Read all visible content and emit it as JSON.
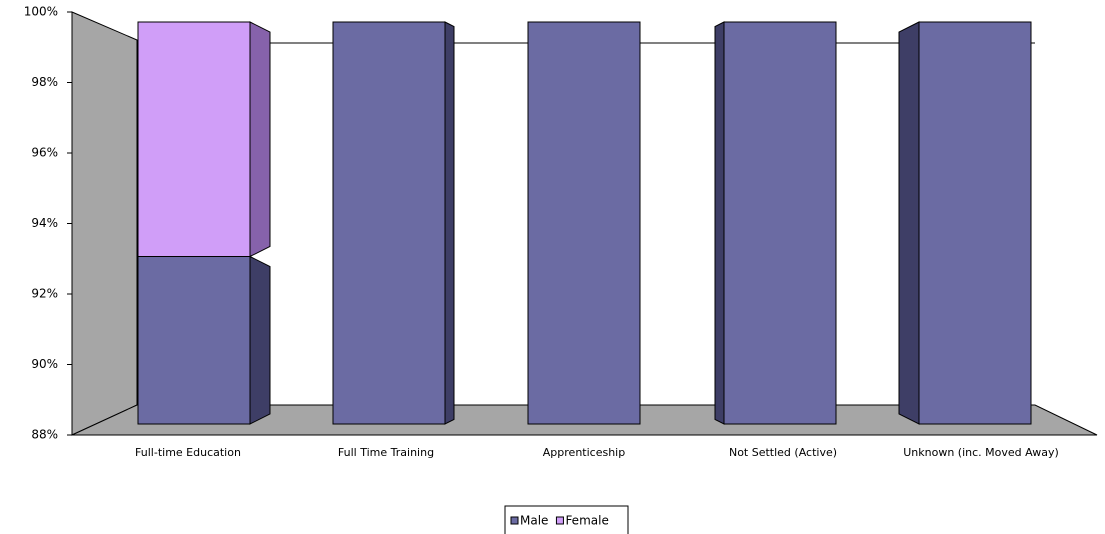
{
  "chart_data": {
    "type": "bar3d_stacked",
    "categories": [
      "Full-time Education",
      "Full Time Training",
      "Apprenticeship",
      "Not Settled (Active)",
      "Unknown (inc. Moved Away)"
    ],
    "series": [
      {
        "name": "Male",
        "color": "#6b6ba3",
        "side_color": "#3e3e66",
        "values": [
          93,
          100,
          100,
          100,
          100
        ]
      },
      {
        "name": "Female",
        "color": "#d09ef8",
        "side_color": "#8662ab",
        "values": [
          7,
          0,
          0,
          0,
          0
        ]
      }
    ],
    "ylim": [
      88,
      100
    ],
    "yticks": [
      {
        "value": 88,
        "label": "88%"
      },
      {
        "value": 90,
        "label": "90%"
      },
      {
        "value": 92,
        "label": "92%"
      },
      {
        "value": 94,
        "label": "94%"
      },
      {
        "value": 96,
        "label": "96%"
      },
      {
        "value": 98,
        "label": "98%"
      },
      {
        "value": 100,
        "label": "100%"
      }
    ],
    "legend": "bottom",
    "stacked": true
  }
}
